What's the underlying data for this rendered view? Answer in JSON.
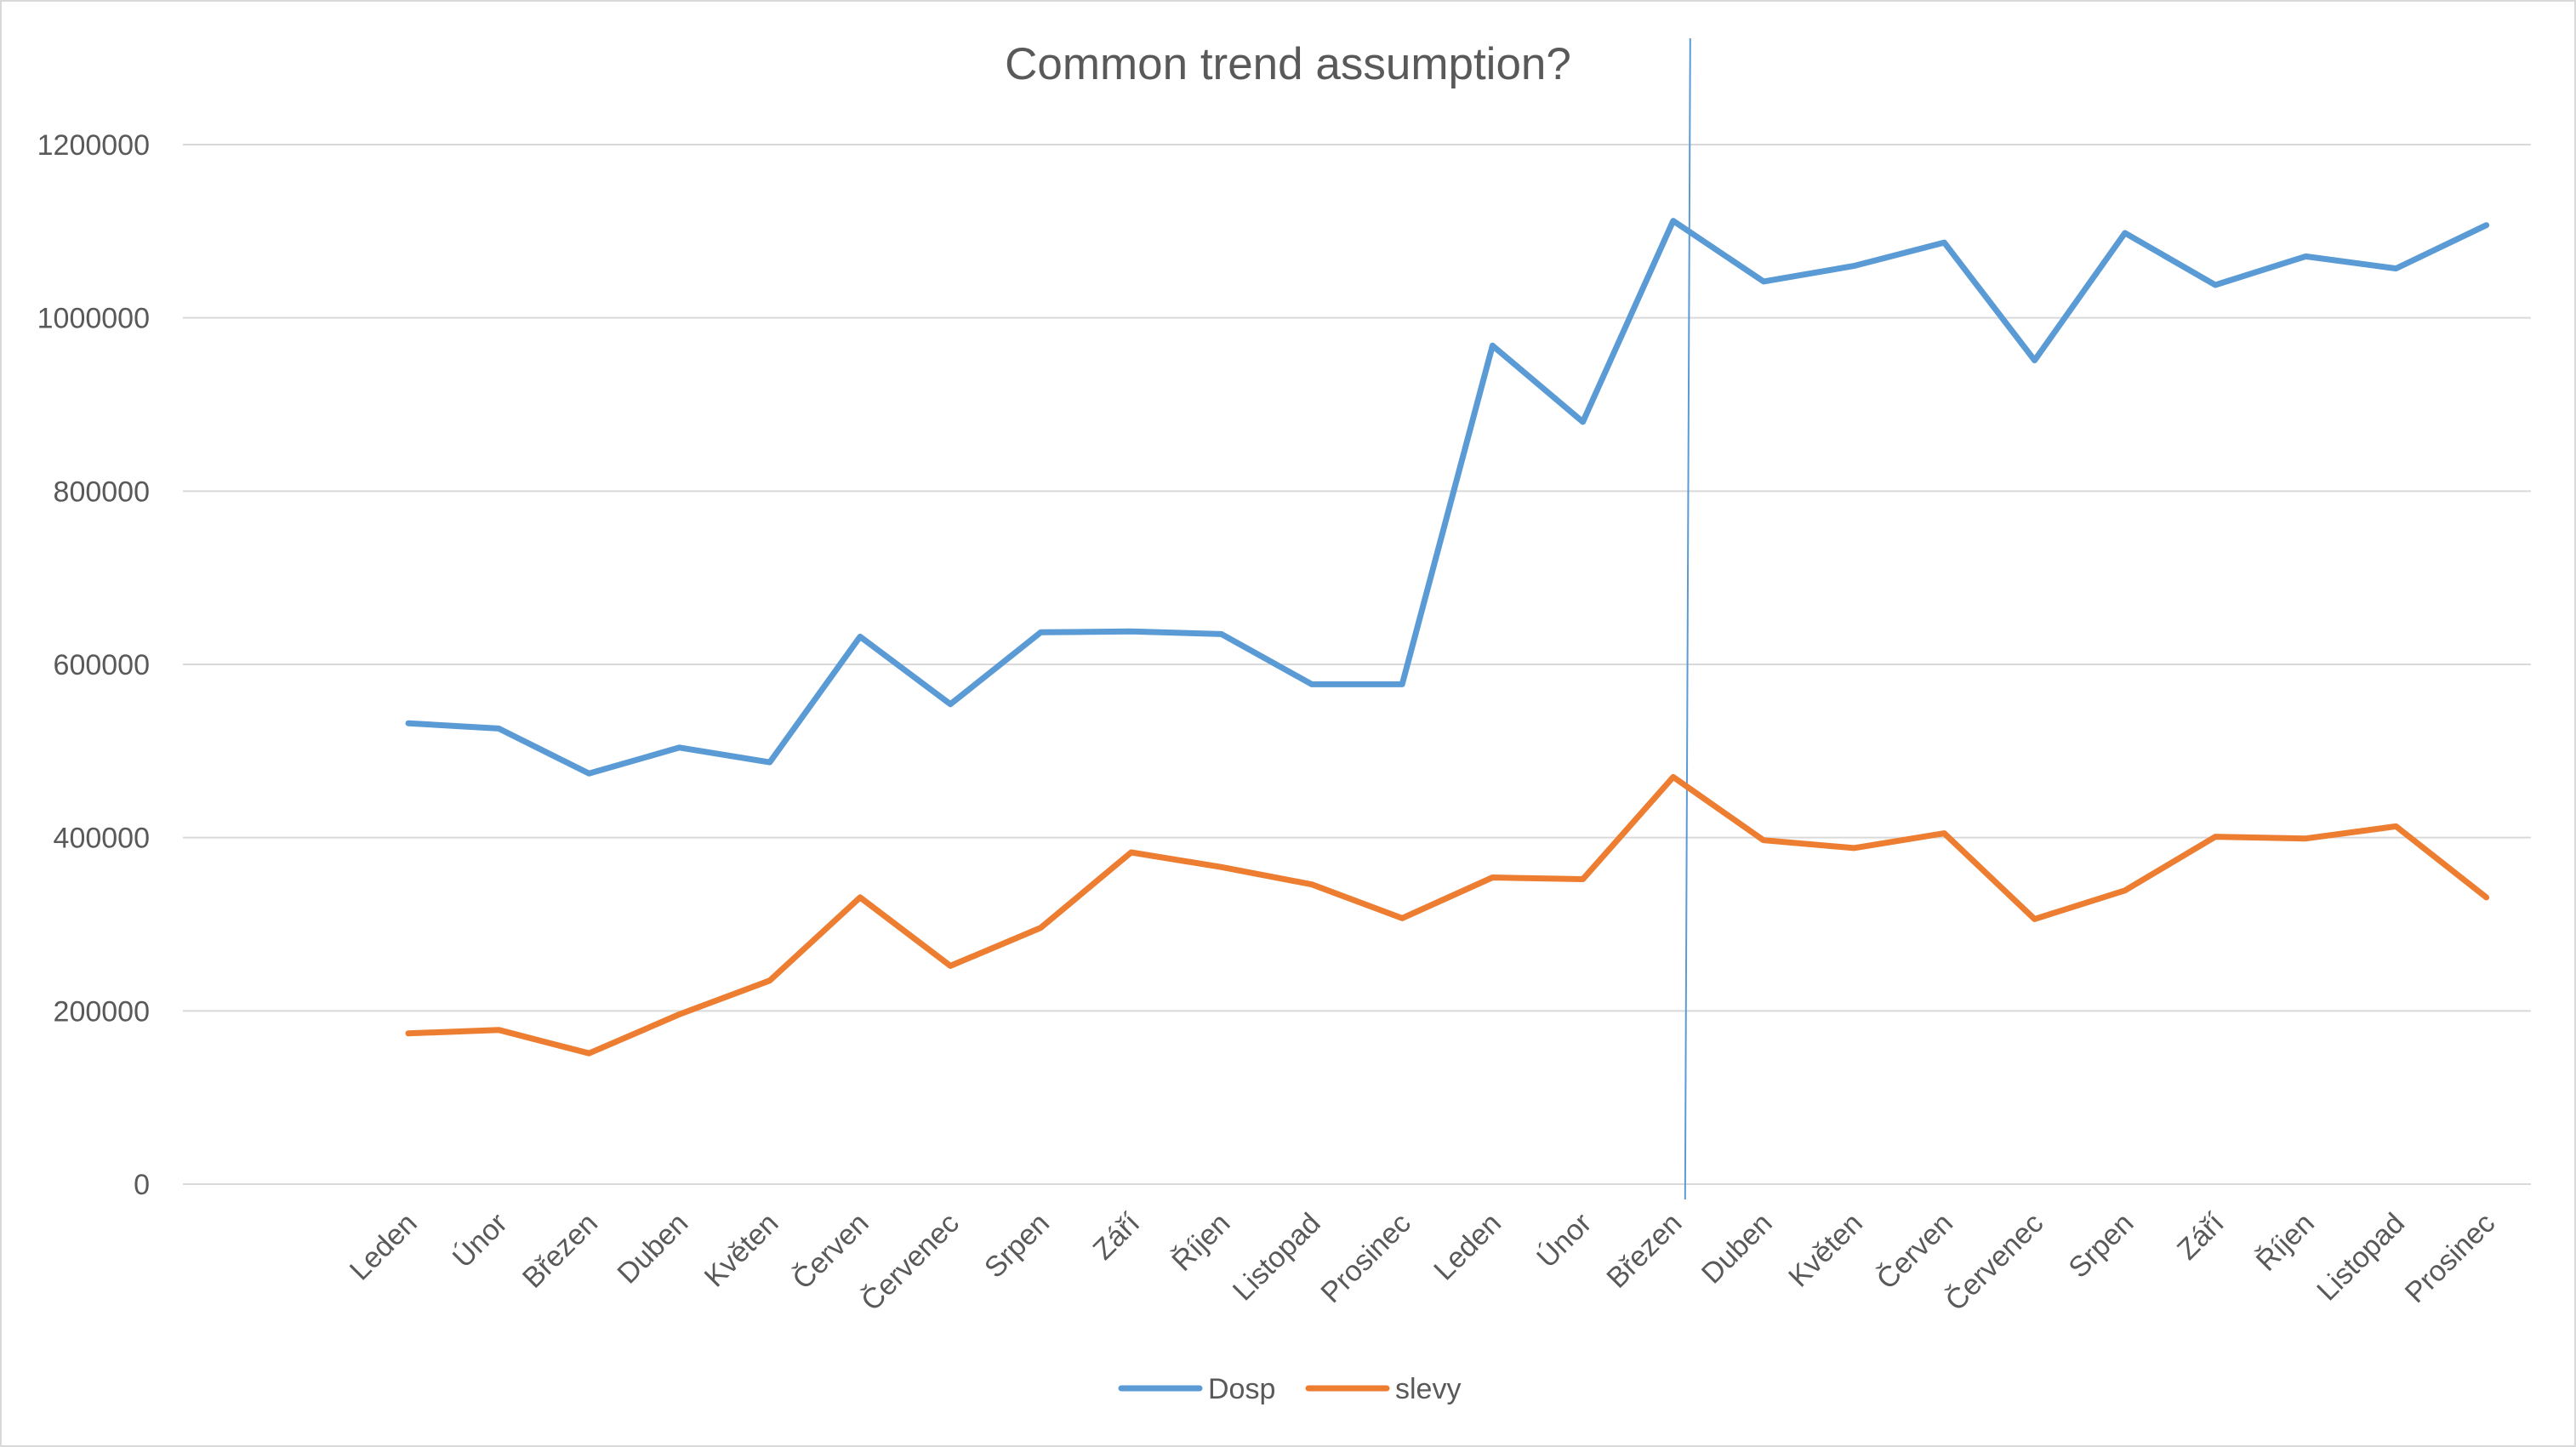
{
  "chart_data": {
    "type": "line",
    "title": "Common trend assumption?",
    "xlabel": "",
    "ylabel": "",
    "categories": [
      "Leden",
      "Únor",
      "Březen",
      "Duben",
      "Květen",
      "Červen",
      "Červenec",
      "Srpen",
      "Září",
      "Říjen",
      "Listopad",
      "Prosinec",
      "Leden",
      "Únor",
      "Březen",
      "Duben",
      "Květen",
      "Červen",
      "Červenec",
      "Srpen",
      "Září",
      "Říjen",
      "Listopad",
      "Prosinec"
    ],
    "y_ticks": [
      "0",
      "200000",
      "400000",
      "600000",
      "800000",
      "1000000",
      "1200000"
    ],
    "ylim": [
      0,
      1200000
    ],
    "grid": true,
    "legend_position": "bottom",
    "series": [
      {
        "name": "Dosp",
        "color": "#5b9bd5",
        "values": [
          532000,
          526000,
          474000,
          504000,
          487000,
          632000,
          554000,
          637000,
          638000,
          635000,
          577000,
          577000,
          968000,
          880000,
          1112000,
          1042000,
          1060000,
          1087000,
          951000,
          1098000,
          1038000,
          1071000,
          1057000,
          1107000
        ]
      },
      {
        "name": "slevy",
        "color": "#ed7d31",
        "values": [
          174000,
          178000,
          151000,
          196000,
          235000,
          331000,
          252000,
          296000,
          383000,
          366000,
          346000,
          307000,
          354000,
          352000,
          470000,
          397000,
          388000,
          405000,
          306000,
          339000,
          401000,
          399000,
          413000,
          331000
        ]
      }
    ],
    "annotations": [
      {
        "type": "vertical-line",
        "after_category_index": 14,
        "color": "#5b9bd5"
      }
    ]
  }
}
